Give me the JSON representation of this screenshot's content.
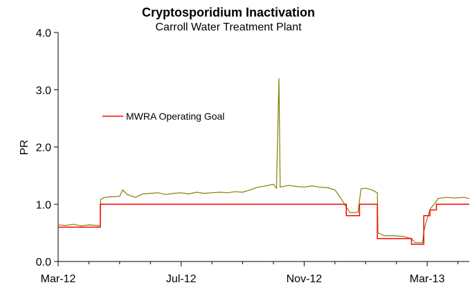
{
  "chart_data": {
    "type": "line",
    "title": "Cryptosporidium Inactivation",
    "subtitle": "Carroll Water Treatment Plant",
    "y_label": "PR",
    "xlim": [
      0,
      13.37
    ],
    "xticks": [
      {
        "value": 0,
        "label": "Mar-12"
      },
      {
        "value": 4,
        "label": "Jul-12"
      },
      {
        "value": 8,
        "label": "Nov-12"
      },
      {
        "value": 12,
        "label": "Mar-13"
      }
    ],
    "xminor_ticks": [
      1,
      2,
      3,
      5,
      6,
      7,
      9,
      10,
      11,
      13
    ],
    "ylim": [
      0,
      4
    ],
    "yticks": [
      {
        "value": 0,
        "label": "0.0"
      },
      {
        "value": 1,
        "label": "1.0"
      },
      {
        "value": 2,
        "label": "2.0"
      },
      {
        "value": 3,
        "label": "3.0"
      },
      {
        "value": 4,
        "label": "4.0"
      }
    ],
    "series": [
      {
        "color": "#808000",
        "x": [
          0,
          0.25,
          0.5,
          0.75,
          1.0,
          1.25,
          1.37,
          1.38,
          1.5,
          1.75,
          2.0,
          2.1,
          2.25,
          2.5,
          2.75,
          3.0,
          3.25,
          3.5,
          3.75,
          4.0,
          4.25,
          4.5,
          4.75,
          5.0,
          5.25,
          5.5,
          5.75,
          6.0,
          6.25,
          6.5,
          6.75,
          7.0,
          7.1,
          7.18,
          7.22,
          7.5,
          7.75,
          8.0,
          8.25,
          8.5,
          8.75,
          9.0,
          9.2,
          9.37,
          9.5,
          9.75,
          9.85,
          10.0,
          10.2,
          10.38,
          10.4,
          10.6,
          10.9,
          11.2,
          11.49,
          11.6,
          11.85,
          11.9,
          12.0,
          12.1,
          12.3,
          12.35,
          12.6,
          12.9,
          13.2,
          13.37
        ],
        "values": [
          0.64,
          0.63,
          0.65,
          0.62,
          0.64,
          0.63,
          0.63,
          1.08,
          1.12,
          1.13,
          1.14,
          1.25,
          1.17,
          1.12,
          1.18,
          1.19,
          1.2,
          1.17,
          1.19,
          1.2,
          1.18,
          1.21,
          1.19,
          1.2,
          1.21,
          1.2,
          1.22,
          1.21,
          1.25,
          1.3,
          1.32,
          1.35,
          1.28,
          3.2,
          1.3,
          1.33,
          1.31,
          1.3,
          1.32,
          1.3,
          1.29,
          1.25,
          1.1,
          0.95,
          0.85,
          0.86,
          1.27,
          1.28,
          1.25,
          1.2,
          0.5,
          0.45,
          0.45,
          0.44,
          0.4,
          0.33,
          0.33,
          0.55,
          0.75,
          0.92,
          1.05,
          1.1,
          1.12,
          1.11,
          1.12,
          1.1
        ]
      },
      {
        "name": "MWRA Operating Goal",
        "color": "#ff0000",
        "step": true,
        "x": [
          0,
          1.37,
          9.37,
          9.8,
          10.38,
          11.49,
          11.89,
          12.09,
          12.3,
          13.37
        ],
        "values": [
          0.6,
          1.0,
          0.8,
          1.0,
          0.4,
          0.3,
          0.8,
          0.9,
          1.0,
          1.0
        ]
      }
    ]
  }
}
